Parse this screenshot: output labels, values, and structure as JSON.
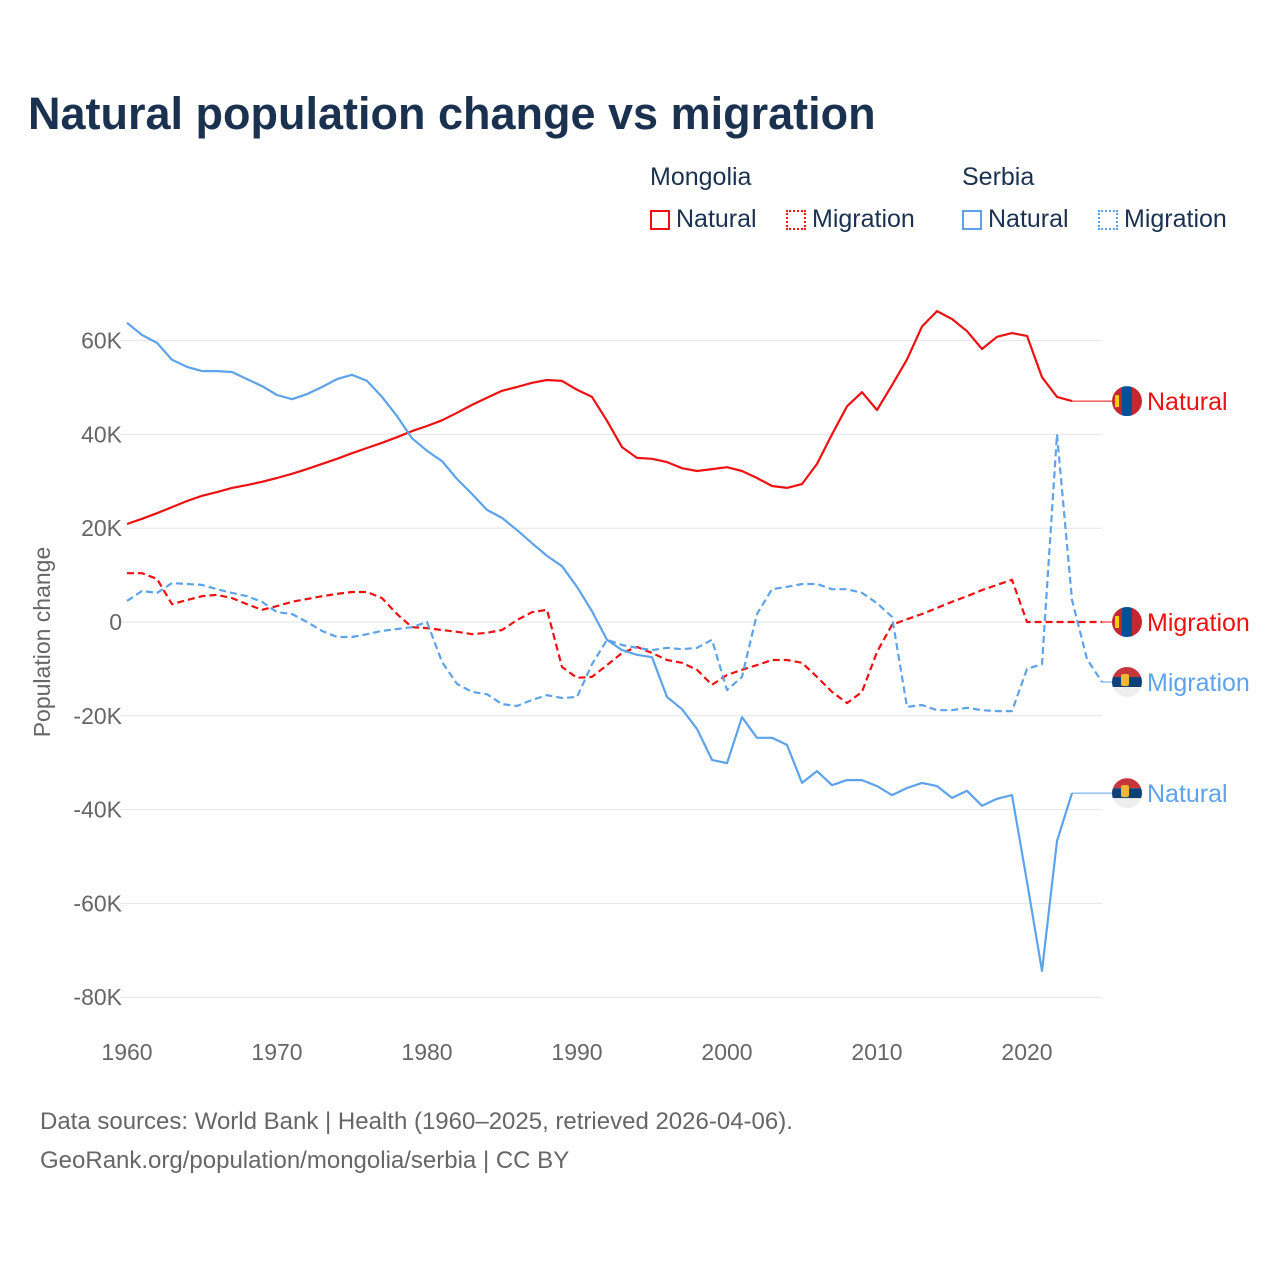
{
  "title": "Natural population change vs migration",
  "legend": {
    "groups": [
      {
        "name": "Mongolia",
        "items": [
          {
            "label": "Natural",
            "style": "solid"
          },
          {
            "label": "Migration",
            "style": "dotted"
          }
        ],
        "color": "#ee1111"
      },
      {
        "name": "Serbia",
        "items": [
          {
            "label": "Natural",
            "style": "solid"
          },
          {
            "label": "Migration",
            "style": "dotted"
          }
        ],
        "color": "#5da3ea"
      }
    ]
  },
  "footer": {
    "line1": "Data sources: World Bank | Health (1960–2025, retrieved 2026-04-06).",
    "line2": "GeoRank.org/population/mongolia/serbia | CC BY"
  },
  "chart_data": {
    "type": "line",
    "title": "Natural population change vs migration",
    "ylabel": "Population change",
    "xlabel": "",
    "xlim": [
      1960,
      2025
    ],
    "ylim": [
      -80000,
      65000
    ],
    "x_ticks": [
      1960,
      1970,
      1980,
      1990,
      2000,
      2010,
      2020
    ],
    "y_ticks": [
      {
        "v": 60,
        "label": "60K"
      },
      {
        "v": 40,
        "label": "40K"
      },
      {
        "v": 20,
        "label": "20K"
      },
      {
        "v": 0,
        "label": "0"
      },
      {
        "v": -20,
        "label": "-20K"
      },
      {
        "v": -40,
        "label": "-40K"
      },
      {
        "v": -60,
        "label": "-60K"
      },
      {
        "v": -80,
        "label": "-80K"
      }
    ],
    "units": "thousands",
    "start_year": 1960,
    "grid": true,
    "series": [
      {
        "name": "Mongolia Natural",
        "country": "Mongolia",
        "end_label": "Natural",
        "color": "#ee1111",
        "dash": false,
        "values": [
          20.9,
          22,
          23.2,
          24.5,
          25.8,
          26.9,
          27.7,
          28.6,
          29.2,
          29.9,
          30.7,
          31.6,
          32.6,
          33.7,
          34.8,
          36,
          37.1,
          38.2,
          39.4,
          40.7,
          41.8,
          43,
          44.6,
          46.3,
          47.8,
          49.3,
          50.1,
          51,
          51.6,
          51.4,
          49.5,
          48,
          42.9,
          37.3,
          35,
          34.8,
          34.1,
          32.8,
          32.2,
          32.6,
          33,
          32.2,
          30.7,
          29,
          28.6,
          29.4,
          33.7,
          40,
          46,
          49,
          45.2,
          50.5,
          56,
          63,
          66.3,
          64.6,
          62,
          58.2,
          60.8,
          61.6,
          61,
          52.2,
          48,
          47.1
        ]
      },
      {
        "name": "Mongolia Migration",
        "country": "Mongolia",
        "end_label": "Migration",
        "color": "#ee1111",
        "dash": true,
        "values": [
          10.4,
          10.4,
          9.2,
          3.8,
          4.7,
          5.5,
          5.8,
          5.1,
          3.8,
          2.6,
          3.4,
          4.3,
          4.9,
          5.5,
          6,
          6.4,
          6.4,
          5.1,
          1.7,
          -1.1,
          -1.3,
          -1.7,
          -2.1,
          -2.6,
          -2.3,
          -1.7,
          0.4,
          2.1,
          2.6,
          -9.6,
          -11.9,
          -11.7,
          -9.2,
          -6.6,
          -5.3,
          -6.6,
          -8.1,
          -8.7,
          -10.2,
          -13.4,
          -11.3,
          -10.2,
          -9.2,
          -8.1,
          -8.1,
          -8.7,
          -11.7,
          -14.9,
          -17.3,
          -14.9,
          -6.4,
          -0.6,
          0.6,
          1.7,
          3,
          4.3,
          5.5,
          6.8,
          7.9,
          9,
          0,
          0,
          0,
          0,
          0,
          0
        ]
      },
      {
        "name": "Serbia Natural",
        "country": "Serbia",
        "end_label": "Natural",
        "color": "#5da3ea",
        "dash": false,
        "values": [
          63.8,
          61.2,
          59.5,
          55.9,
          54.4,
          53.5,
          53.5,
          53.3,
          51.8,
          50.3,
          48.4,
          47.5,
          48.6,
          50.1,
          51.8,
          52.7,
          51.4,
          48,
          43.9,
          39.2,
          36.5,
          34.3,
          30.5,
          27.3,
          23.9,
          22.2,
          19.6,
          16.8,
          14.1,
          11.9,
          7.5,
          2.3,
          -3.8,
          -6,
          -7,
          -7.5,
          -16,
          -18.6,
          -22.8,
          -29.4,
          -30.1,
          -20.3,
          -24.7,
          -24.7,
          -26.2,
          -34.3,
          -31.8,
          -34.8,
          -33.7,
          -33.7,
          -35,
          -36.9,
          -35.4,
          -34.3,
          -35,
          -37.5,
          -36,
          -39.2,
          -37.7,
          -36.9,
          -55.4,
          -74.4,
          -46.7,
          -36.5
        ]
      },
      {
        "name": "Serbia Migration",
        "country": "Serbia",
        "end_label": "Migration",
        "color": "#5da3ea",
        "dash": true,
        "values": [
          4.5,
          6.6,
          6.2,
          8.3,
          8.1,
          7.9,
          7,
          6.2,
          5.5,
          4.3,
          2.1,
          1.7,
          0,
          -1.9,
          -3.2,
          -3.2,
          -2.6,
          -1.9,
          -1.5,
          -1.1,
          0,
          -8.5,
          -13.2,
          -14.9,
          -15.4,
          -17.5,
          -17.9,
          -16.6,
          -15.6,
          -16.2,
          -16,
          -9,
          -3.8,
          -4.9,
          -5.5,
          -6,
          -5.5,
          -5.8,
          -5.5,
          -3.8,
          -14.5,
          -11.7,
          1.7,
          7,
          7.5,
          8.1,
          8.1,
          7,
          7,
          6.2,
          4,
          1.1,
          -18.1,
          -17.7,
          -18.8,
          -18.8,
          -18.3,
          -18.8,
          -19,
          -19,
          -10,
          -9,
          40,
          4.7,
          -7.9,
          -12.8
        ]
      }
    ]
  }
}
